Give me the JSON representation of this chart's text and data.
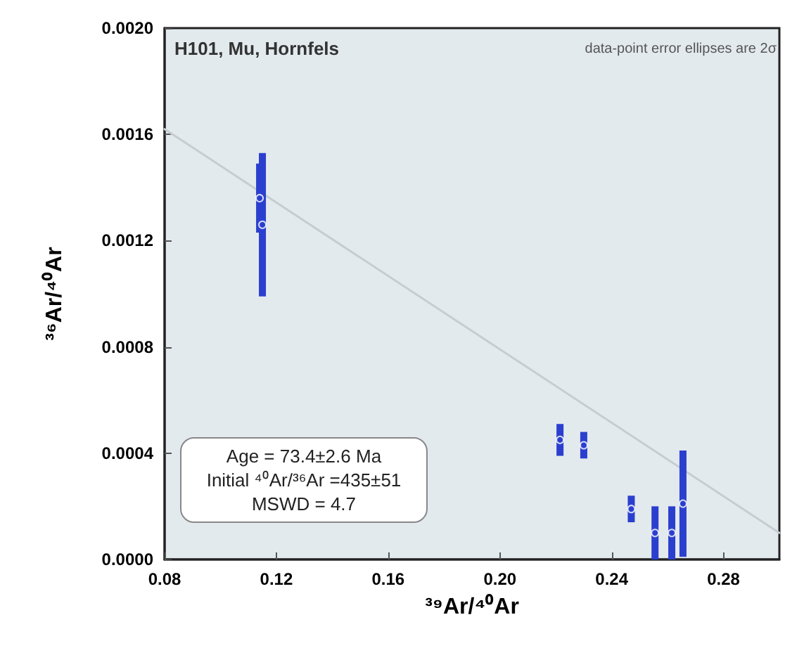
{
  "chart_data": {
    "type": "scatter",
    "title": "H101, Mu, Hornfels",
    "xlabel": "³⁹Ar/⁴⁰Ar",
    "ylabel": "³⁶Ar/⁴⁰Ar",
    "annotations": [
      "data-point error ellipses are 2σ",
      "Age = 73.4±2.6 Ma",
      "Initial ⁴⁰Ar/³⁶Ar =435±51",
      "MSWD = 4.7"
    ],
    "xlim": [
      0.08,
      0.3
    ],
    "xticks": [
      0.08,
      0.12,
      0.16,
      {
        "value": 0.2,
        "label": "0.20"
      },
      0.24,
      0.28
    ],
    "ylim": [
      0,
      0.002
    ],
    "yticks": [
      {
        "value": 0,
        "label": "0.0000"
      },
      0.0004,
      0.0008,
      0.0012,
      0.0016,
      {
        "value": 0.002,
        "label": "0.0020"
      }
    ],
    "grid": false,
    "series": [
      {
        "color": "#2b3fcf",
        "x": [
          0.115,
          0.114,
          0.2215,
          0.23,
          0.247,
          0.2555,
          0.2615,
          0.2655
        ],
        "values": [
          0.00126,
          0.00136,
          0.00045,
          0.00043,
          0.00019,
          0.0001,
          0.0001,
          0.00021
        ],
        "errors": [
          0.00027,
          0.00013,
          6e-05,
          5e-05,
          5e-05,
          0.0001,
          0.0001,
          0.0002
        ]
      },
      {
        "type": "line",
        "color": "#c5cdd2",
        "x": [
          0.08,
          0.3
        ],
        "values": [
          0.00162,
          0.0001
        ]
      }
    ]
  }
}
